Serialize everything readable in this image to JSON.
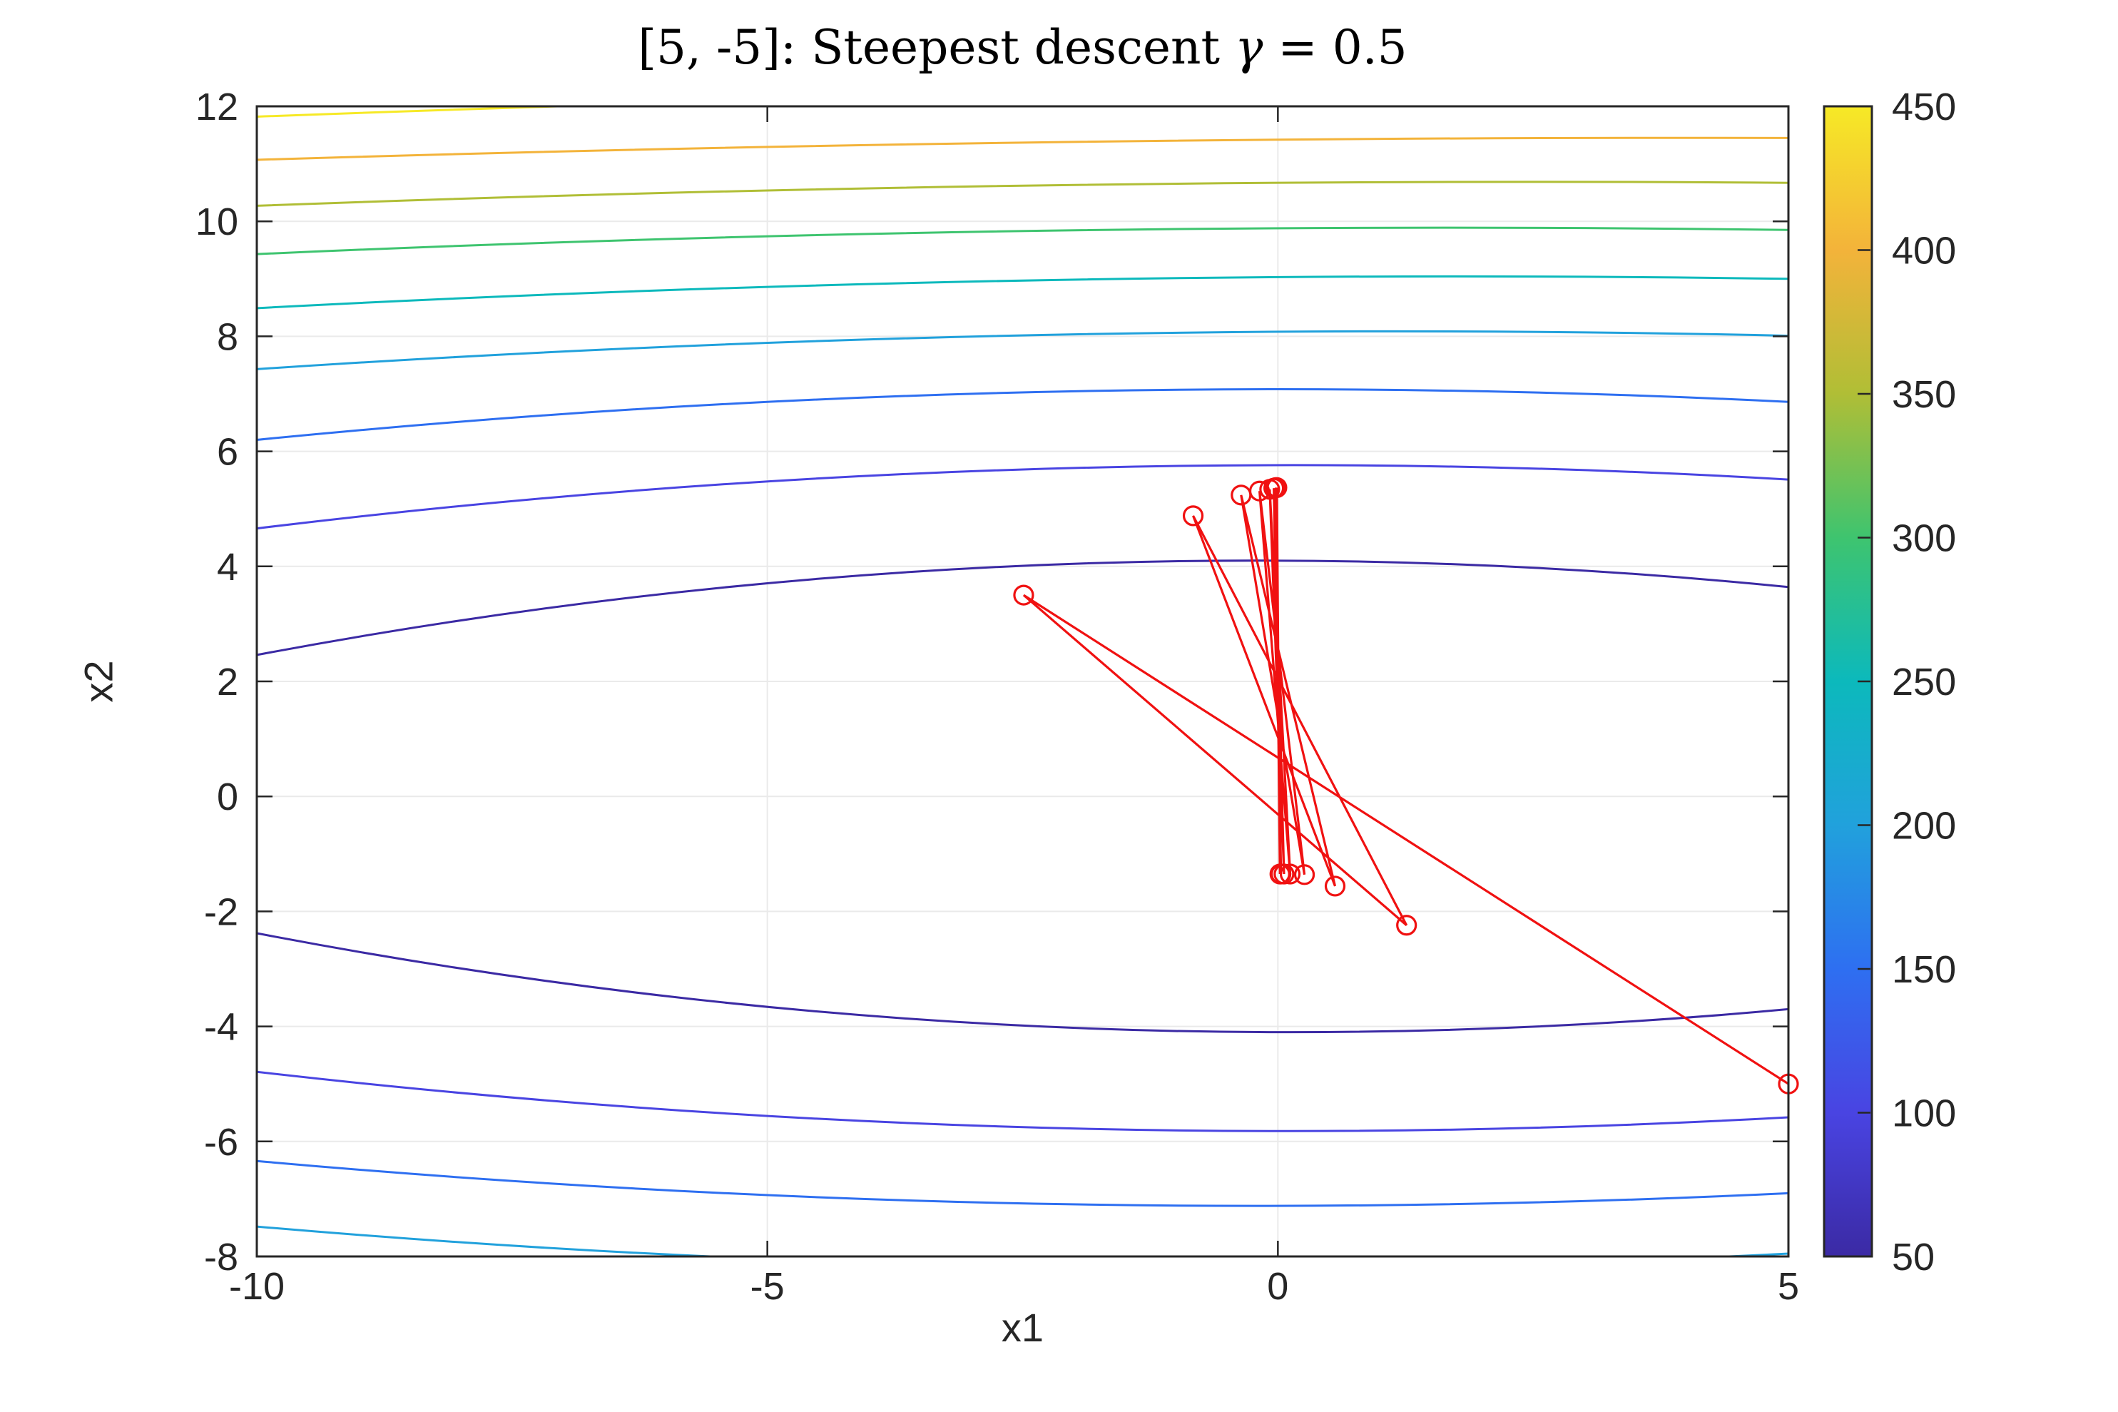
{
  "title": "[5, -5]: Steepest descent γ = 0.5",
  "title_parts": {
    "prefix": "[5, -5]: Steepest descent ",
    "gamma": "γ",
    "suffix": " = 0.5"
  },
  "chart_data": {
    "type": "contour",
    "title": "[5, -5]: Steepest descent γ = 0.5",
    "xlabel": "x1",
    "ylabel": "x2",
    "xlim": [
      -10,
      5
    ],
    "ylim": [
      -8,
      12
    ],
    "xticks": [
      -10,
      -5,
      0,
      5
    ],
    "yticks": [
      -8,
      -6,
      -4,
      -2,
      0,
      2,
      4,
      6,
      8,
      10,
      12
    ],
    "grid": true,
    "grid_color": "#eaeaea",
    "axis_color": "#262626",
    "contour_levels": [
      {
        "level": 50,
        "color": "#3b2aa4",
        "top": {
          "yL": 2.46,
          "yM": 4.1,
          "yR": 3.64
        },
        "bottom": {
          "yL": -2.38,
          "yM": -4.1,
          "yR": -3.7
        }
      },
      {
        "level": 100,
        "color": "#4944e2",
        "top": {
          "yL": 4.66,
          "yM": 5.76,
          "yR": 5.51
        },
        "bottom": {
          "yL": -4.79,
          "yM": -5.82,
          "yR": -5.58
        }
      },
      {
        "level": 150,
        "color": "#2e6ff1",
        "top": {
          "yL": 6.2,
          "yM": 7.08,
          "yR": 6.86
        },
        "bottom": {
          "yL": -6.34,
          "yM": -7.12,
          "yR": -6.9
        }
      },
      {
        "level": 200,
        "color": "#21a1dc",
        "top": {
          "yL": 7.43,
          "yM": 8.08,
          "yR": 8.01
        },
        "bottom": {
          "yL": -7.48,
          "yM": -8.2,
          "yR": -7.95
        }
      },
      {
        "level": 250,
        "color": "#0cb9bc",
        "top": {
          "yL": 8.49,
          "yM": 9.03,
          "yR": 9.0
        },
        "bottom": null
      },
      {
        "level": 300,
        "color": "#3ec46f",
        "top": {
          "yL": 9.43,
          "yM": 9.88,
          "yR": 9.85
        },
        "bottom": null
      },
      {
        "level": 350,
        "color": "#b0be36",
        "top": {
          "yL": 10.27,
          "yM": 10.67,
          "yR": 10.67
        },
        "bottom": null
      },
      {
        "level": 400,
        "color": "#f3b33a",
        "top": {
          "yL": 11.07,
          "yM": 11.42,
          "yR": 11.45
        },
        "bottom": null
      },
      {
        "level": 450,
        "color": "#f6e926",
        "top": {
          "yL": 11.82,
          "yM": 12.3,
          "yR": 12.4
        },
        "bottom": null
      }
    ],
    "descent_path": {
      "color": "#f01111",
      "gamma": 0.5,
      "start": [
        5,
        -5
      ],
      "points": [
        [
          5.0,
          -5.0
        ],
        [
          -2.49,
          3.5
        ],
        [
          1.26,
          -2.24
        ],
        [
          -0.83,
          4.88
        ],
        [
          0.56,
          -1.56
        ],
        [
          -0.36,
          5.24
        ],
        [
          0.26,
          -1.36
        ],
        [
          -0.18,
          5.31
        ],
        [
          0.12,
          -1.35
        ],
        [
          -0.08,
          5.34
        ],
        [
          0.06,
          -1.35
        ],
        [
          -0.04,
          5.36
        ],
        [
          0.03,
          -1.35
        ],
        [
          -0.02,
          5.37
        ],
        [
          0.02,
          -1.35
        ],
        [
          -0.01,
          5.37
        ]
      ]
    },
    "colorbar": {
      "min": 50,
      "max": 450,
      "ticks": [
        50,
        100,
        150,
        200,
        250,
        300,
        350,
        400,
        450
      ],
      "stops": [
        {
          "value": 50,
          "color": "#3b2aa4"
        },
        {
          "value": 100,
          "color": "#4944e2"
        },
        {
          "value": 150,
          "color": "#2e6ff1"
        },
        {
          "value": 200,
          "color": "#21a1dc"
        },
        {
          "value": 250,
          "color": "#0cb9bc"
        },
        {
          "value": 300,
          "color": "#3ec46f"
        },
        {
          "value": 350,
          "color": "#b0be36"
        },
        {
          "value": 400,
          "color": "#f3b33a"
        },
        {
          "value": 450,
          "color": "#f6e926"
        }
      ]
    }
  }
}
